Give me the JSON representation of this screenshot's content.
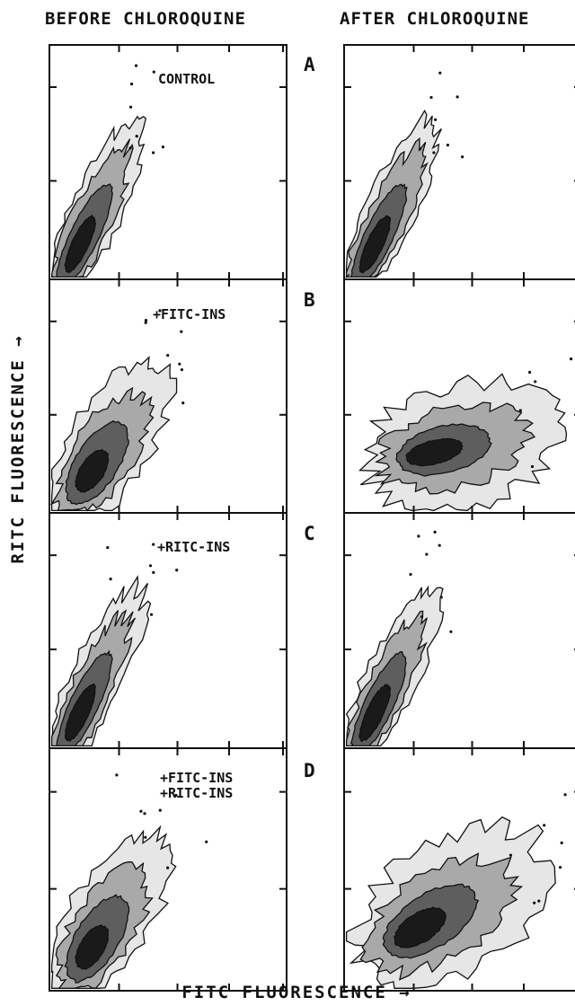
{
  "chart_data": {
    "type": "scatter",
    "kind": "flow cytometry contour plots",
    "grid": false,
    "columns": [
      "BEFORE CHLOROQUINE",
      "AFTER CHLOROQUINE"
    ],
    "rows": [
      {
        "letter": "A",
        "label": [
          "CONTROL"
        ]
      },
      {
        "letter": "B",
        "label": [
          "+FITC-INS"
        ]
      },
      {
        "letter": "C",
        "label": [
          "+RITC-INS"
        ]
      },
      {
        "letter": "D",
        "label": [
          "+FITC-INS",
          "+RITC-INS"
        ]
      }
    ],
    "xlabel": "FITC FLUORESCENCE →",
    "ylabel": "RITC FLUORESCENCE →",
    "panels": [
      {
        "row": "A",
        "column": "BEFORE CHLOROQUINE",
        "shape": "narrow-diagonal"
      },
      {
        "row": "A",
        "column": "AFTER CHLOROQUINE",
        "shape": "narrow-diagonal"
      },
      {
        "row": "B",
        "column": "BEFORE CHLOROQUINE",
        "shape": "widened-diagonal"
      },
      {
        "row": "B",
        "column": "AFTER CHLOROQUINE",
        "shape": "broad-horizontal"
      },
      {
        "row": "C",
        "column": "BEFORE CHLOROQUINE",
        "shape": "narrow-diagonal"
      },
      {
        "row": "C",
        "column": "AFTER CHLOROQUINE",
        "shape": "narrow-diagonal"
      },
      {
        "row": "D",
        "column": "BEFORE CHLOROQUINE",
        "shape": "widened-diagonal"
      },
      {
        "row": "D",
        "column": "AFTER CHLOROQUINE",
        "shape": "broad-diagonal"
      }
    ]
  }
}
